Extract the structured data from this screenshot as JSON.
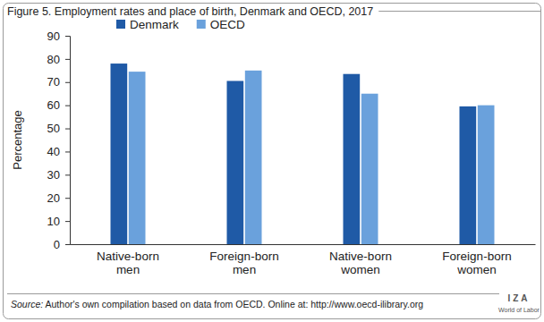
{
  "chart_data": {
    "type": "bar",
    "title": "Figure 5. Employment rates and place of birth, Denmark and OECD, 2017",
    "y_label": "Percentage",
    "categories": [
      "Native-born men",
      "Foreign-born men",
      "Native-born women",
      "Foreign-born women"
    ],
    "series": [
      {
        "name": "Denmark",
        "color": "#1f5aa6",
        "values": [
          78,
          70.5,
          73.5,
          59.5
        ]
      },
      {
        "name": "OECD",
        "color": "#6aa1dc",
        "values": [
          74.5,
          75,
          65,
          60
        ]
      }
    ],
    "ylim": [
      0,
      90
    ],
    "yticks": [
      0,
      10,
      20,
      30,
      40,
      50,
      60,
      70,
      80,
      90
    ],
    "grid": false,
    "legend": "top",
    "annotations": [
      "Source: Author's own compilation based on data from OECD. Online at: http://www.oecd-ilibrary.org",
      "IZA",
      "World of Labor"
    ]
  }
}
